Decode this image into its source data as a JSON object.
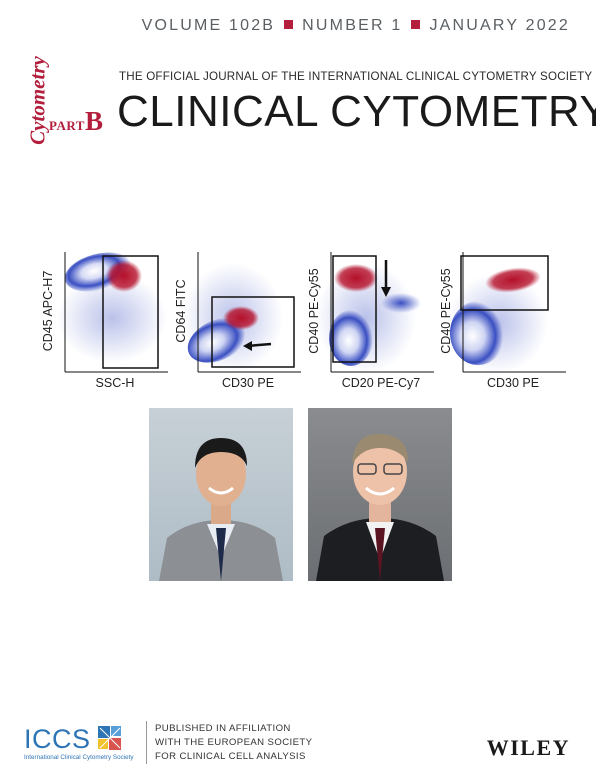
{
  "issue": {
    "volume": "VOLUME 102B",
    "number": "NUMBER 1",
    "date": "JANUARY 2022",
    "accent": "#b21e3c"
  },
  "masthead": {
    "vertical_brand": "Cytometry",
    "part_word": "PART",
    "part_letter": "B",
    "subtitle": "THE OFFICIAL JOURNAL OF THE INTERNATIONAL CLINICAL CYTOMETRY SOCIETY",
    "title": "CLINICAL CYTOMETRY"
  },
  "plots": [
    {
      "ylabel": "CD45 APC-H7",
      "xlabel": "SSC-H"
    },
    {
      "ylabel": "CD64 FITC",
      "xlabel": "CD30 PE"
    },
    {
      "ylabel": "CD40 PE-Cy55",
      "xlabel": "CD20 PE-Cy7"
    },
    {
      "ylabel": "CD40 PE-Cy55",
      "xlabel": "CD30 PE"
    }
  ],
  "footer": {
    "logo_text": "ICCS",
    "logo_caption": "International Clinical Cytometry Society",
    "affiliation_lines": [
      "PUBLISHED IN AFFILIATION",
      "WITH THE EUROPEAN SOCIETY",
      "FOR CLINICAL CELL ANALYSIS"
    ],
    "publisher": "WILEY"
  },
  "colors": {
    "blue_population": "#3a4fc2",
    "red_population": "#b5102a",
    "logo_blue": "#2e75b6"
  }
}
